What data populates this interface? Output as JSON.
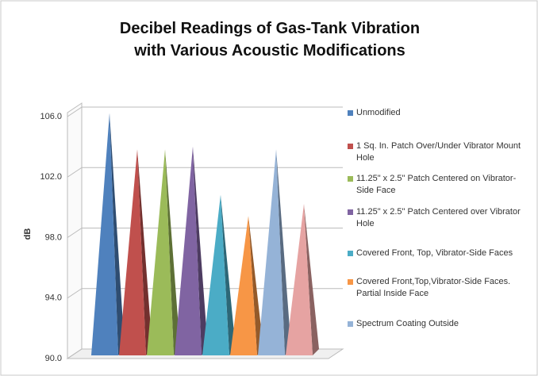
{
  "chart_data": {
    "type": "pyramid",
    "title": "Decibel Readings of Gas-Tank Vibration with Various Acoustic Modifications",
    "y_label": "dB",
    "ylim": [
      90,
      106
    ],
    "yticks": [
      {
        "value": 90,
        "label": "90.0"
      },
      {
        "value": 94,
        "label": "94.0"
      },
      {
        "value": 98,
        "label": "98.0"
      },
      {
        "value": 102,
        "label": "102.0"
      },
      {
        "value": 106,
        "label": "106.0"
      }
    ],
    "grid": true,
    "series": [
      {
        "name": "Unmodified",
        "color": "#4f81bd",
        "values": [
          105.6
        ]
      },
      {
        "name": "1 Sq. In. Patch Over/Under Vibrator Mount Hole",
        "color": "#c0504d",
        "values": [
          103.2
        ]
      },
      {
        "name": "11.25\" x 2.5\" Patch Centered on Vibrator-Side Face",
        "color": "#9bbb59",
        "values": [
          103.2
        ]
      },
      {
        "name": "11.25\" x 2.5\" Patch Centered over Vibrator Hole",
        "color": "#8064a2",
        "values": [
          103.4
        ]
      },
      {
        "name": "Covered Front, Top, Vibrator-Side Faces",
        "color": "#4bacc6",
        "values": [
          100.2
        ]
      },
      {
        "name": "Covered Front,Top,Vibrator-Side Faces. Partial Inside Face",
        "color": "#f79646",
        "values": [
          98.8
        ]
      },
      {
        "name": "Spectrum Coating Outside",
        "color": "#95b3d7",
        "values": [
          103.2
        ]
      },
      {
        "name": null,
        "color": "#e6a3a2",
        "values": [
          99.6
        ]
      }
    ]
  }
}
